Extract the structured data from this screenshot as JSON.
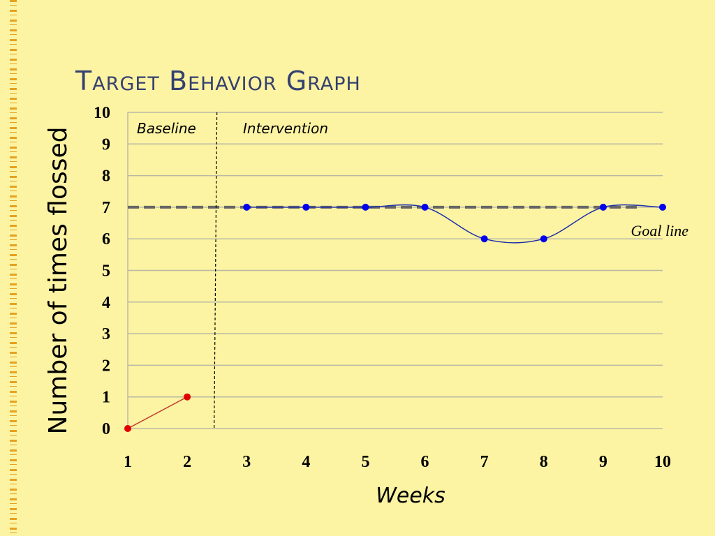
{
  "slide": {
    "title": "Target Behavior Graph"
  },
  "chart_data": {
    "type": "line",
    "xlabel": "Weeks",
    "ylabel": "Number of times flossed",
    "x_ticks": [
      1,
      2,
      3,
      4,
      5,
      6,
      7,
      8,
      9,
      10
    ],
    "y_ticks": [
      0,
      1,
      2,
      3,
      4,
      5,
      6,
      7,
      8,
      9,
      10
    ],
    "xlim": [
      1,
      10
    ],
    "ylim": [
      0,
      10
    ],
    "grid": "horizontal",
    "series": [
      {
        "x": [
          1,
          2
        ],
        "values": [
          0,
          1
        ],
        "color": "#e00000",
        "line_color": "#c0392b",
        "smooth": false
      },
      {
        "x": [
          3,
          4,
          5,
          6,
          7,
          8,
          9,
          10
        ],
        "values": [
          7,
          7,
          7,
          7,
          6,
          6,
          7,
          7
        ],
        "color": "#0000ee",
        "line_color": "#1f2fa8",
        "smooth": true
      }
    ],
    "phase_change_x": 2.5,
    "phases": [
      "Baseline",
      "Intervention"
    ],
    "goal_line": {
      "value": 7,
      "label": "Goal line",
      "color": "#666666"
    }
  }
}
